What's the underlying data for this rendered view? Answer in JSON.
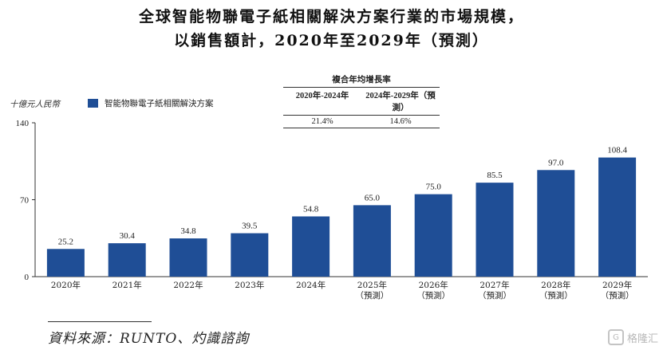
{
  "title_line1": "全球智能物聯電子紙相關解決方案行業的市場規模，",
  "title_line2": "以銷售額計，2020年至2029年（預測）",
  "cagr_table": {
    "header": "複合年均增長率",
    "periods": [
      "2020年-2024年",
      "2024年-2029年（預測）"
    ],
    "rates": [
      "21.4%",
      "14.6%"
    ]
  },
  "unit_label": "十億元人民幣",
  "source": "資料來源：RUNTO、灼識諮詢",
  "watermark": "格隆汇",
  "colors": {
    "bar": "#1f4e96",
    "axis": "#333333"
  },
  "chart_data": {
    "type": "bar",
    "categories": [
      "2020年",
      "2021年",
      "2022年",
      "2023年",
      "2024年",
      "2025年",
      "2026年",
      "2027年",
      "2028年",
      "2029年"
    ],
    "category_sublabels": [
      "",
      "",
      "",
      "",
      "",
      "（預測）",
      "（預測）",
      "（預測）",
      "（預測）",
      "（預測）"
    ],
    "series": [
      {
        "name": "智能物聯電子紙相關解決方案",
        "values": [
          25.2,
          30.4,
          34.8,
          39.5,
          54.8,
          65.0,
          75.0,
          85.5,
          97.0,
          108.4
        ]
      }
    ],
    "data_labels": [
      "25.2",
      "30.4",
      "34.8",
      "39.5",
      "54.8",
      "65.0",
      "75.0",
      "85.5",
      "97.0",
      "108.4"
    ],
    "yticks": [
      "0",
      "70",
      "140"
    ],
    "ylim": [
      0,
      140
    ],
    "legend_position": "top-left",
    "grid": false
  }
}
